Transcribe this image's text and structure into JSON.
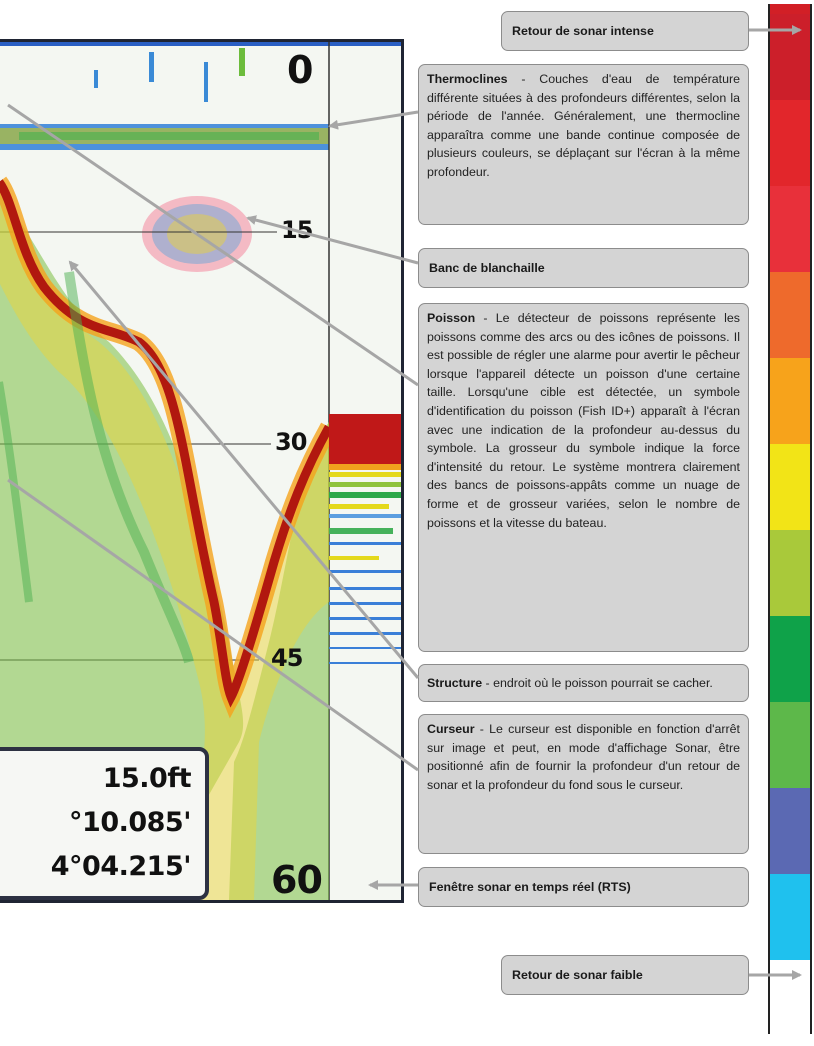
{
  "depth_labels": {
    "top": "0",
    "d15": "15",
    "d30": "30",
    "d45": "45",
    "bottom": "60"
  },
  "readout": {
    "depth": "15.0ft",
    "lat": "°10.085'",
    "lon": "4°04.215'"
  },
  "callouts": {
    "intense": "Retour de sonar intense",
    "thermoclines_term": "Thermoclines",
    "thermoclines_text": " - Couches d'eau de température différente situées à des profondeurs différentes, selon la période de l'année. Généralement, une thermocline apparaîtra comme une bande continue composée de plusieurs couleurs, se déplaçant sur l'écran à la même profondeur.",
    "bait": "Banc de blanchaille",
    "fish_term": "Poisson",
    "fish_text": " - Le détecteur de poissons représente les poissons comme des arcs ou des icônes de poissons. Il est possible de régler une alarme pour avertir le pêcheur lorsque l'appareil détecte un poisson d'une certaine taille. Lorsqu'une cible est détectée, un symbole d'identification du poisson (Fish ID+) apparaît à l'écran avec une indication de la profondeur au-dessus du symbole. La grosseur du symbole indique la force d'intensité du retour. Le système montrera clairement des bancs de poissons-appâts comme un nuage de forme et de grosseur variées, selon le nombre de poissons et la vitesse du bateau.",
    "structure_term": "Structure",
    "structure_text": " - endroit où le poisson pourrait se cacher.",
    "cursor_term": "Curseur",
    "cursor_text": " - Le curseur est disponible en fonction d'arrêt sur image et peut, en mode d'affichage Sonar, être positionné afin de fournir la profondeur d'un retour de sonar et la profondeur du fond sous le curseur.",
    "rts": "Fenêtre sonar en temps réel (RTS)",
    "weak": "Retour de sonar faible"
  },
  "colors": {
    "scale": [
      "#d21f26",
      "#cc1f2a",
      "#e2262b",
      "#e8303a",
      "#ee6a2c",
      "#f7a31b",
      "#f2e417",
      "#a9c93a",
      "#0fa249",
      "#5db84a",
      "#5b69b3",
      "#1fc1ee",
      "#ffffff"
    ],
    "frame": "#1f2433",
    "callout_bg": "#d4d4d4",
    "arrow": "#a6a6a6"
  }
}
